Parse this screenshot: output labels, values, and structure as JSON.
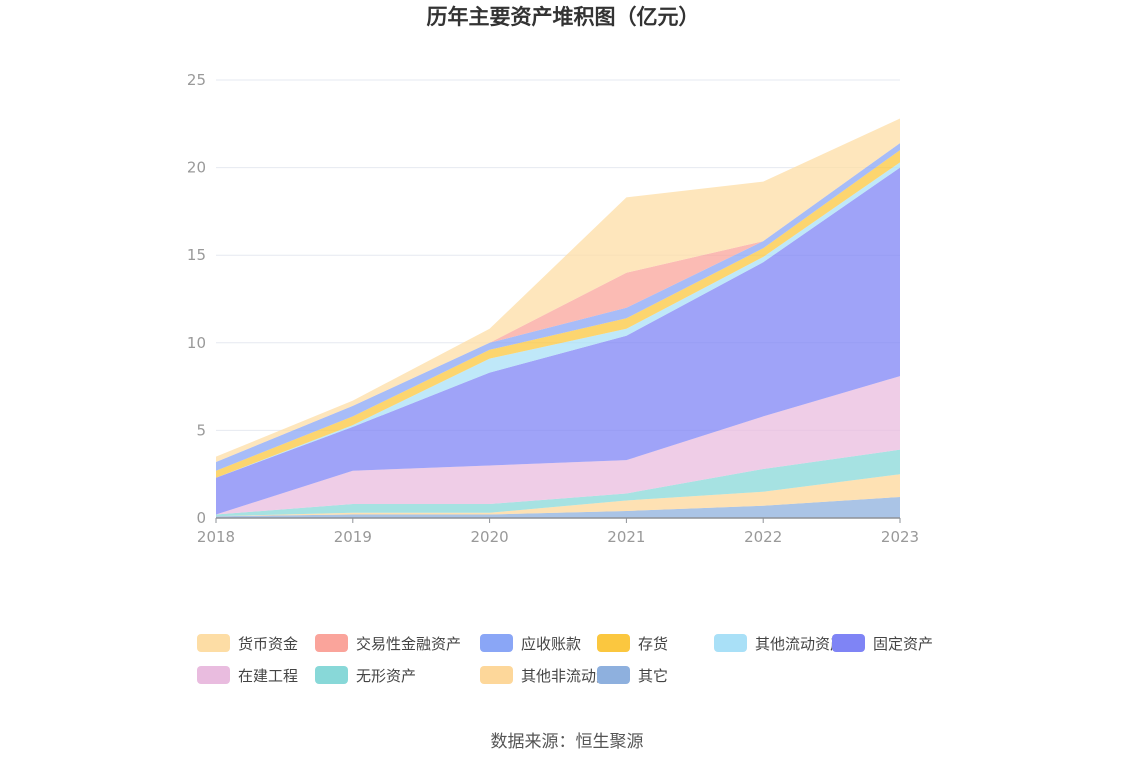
{
  "chart_data": {
    "type": "area",
    "stacked": true,
    "title": "历年主要资产堆积图（亿元）",
    "categories": [
      "2018",
      "2019",
      "2020",
      "2021",
      "2022",
      "2023"
    ],
    "yticks": [
      "0",
      "5",
      "10",
      "15",
      "20",
      "25"
    ],
    "ylim": [
      0,
      25
    ],
    "xlabel": "",
    "ylabel": "",
    "grid": true,
    "legend_position": "bottom",
    "series": [
      {
        "name": "其它",
        "color": "#8eb0de",
        "values": [
          0.1,
          0.2,
          0.2,
          0.4,
          0.7,
          1.2
        ]
      },
      {
        "name": "其他非流动资产",
        "color": "#fdd79a",
        "values": [
          0.0,
          0.1,
          0.1,
          0.6,
          0.8,
          1.3
        ]
      },
      {
        "name": "无形资产",
        "color": "#88d8d8",
        "values": [
          0.1,
          0.5,
          0.5,
          0.4,
          1.3,
          1.4
        ]
      },
      {
        "name": "在建工程",
        "color": "#e9bcdf",
        "values": [
          0.0,
          1.9,
          2.2,
          1.9,
          3.0,
          4.2
        ]
      },
      {
        "name": "固定资产",
        "color": "#7f84f5",
        "values": [
          2.1,
          2.5,
          5.3,
          7.1,
          8.8,
          11.9
        ]
      },
      {
        "name": "其他流动资产",
        "color": "#a9e0f7",
        "values": [
          0.0,
          0.1,
          0.8,
          0.4,
          0.3,
          0.3
        ]
      },
      {
        "name": "存货",
        "color": "#fbc73f",
        "values": [
          0.4,
          0.5,
          0.5,
          0.6,
          0.5,
          0.7
        ]
      },
      {
        "name": "应收账款",
        "color": "#8aa6f6",
        "values": [
          0.5,
          0.6,
          0.4,
          0.6,
          0.4,
          0.4
        ]
      },
      {
        "name": "交易性金融资产",
        "color": "#faa49b",
        "values": [
          0.0,
          0.0,
          0.0,
          2.0,
          0.0,
          0.0
        ]
      },
      {
        "name": "货币资金",
        "color": "#fddda5",
        "values": [
          0.3,
          0.3,
          0.8,
          4.3,
          3.4,
          1.4
        ]
      }
    ]
  },
  "legend": [
    {
      "label": "货币资金",
      "color": "#fddda5"
    },
    {
      "label": "交易性金融资产",
      "color": "#faa49b"
    },
    {
      "label": "应收账款",
      "color": "#8aa6f6"
    },
    {
      "label": "存货",
      "color": "#fbc73f"
    },
    {
      "label": "其他流动资产",
      "color": "#a9e0f7"
    },
    {
      "label": "固定资产",
      "color": "#7f84f5"
    },
    {
      "label": "在建工程",
      "color": "#e9bcdf"
    },
    {
      "label": "无形资产",
      "color": "#88d8d8"
    },
    {
      "label": "其他非流动资产",
      "color": "#fdd79a"
    },
    {
      "label": "其它",
      "color": "#8eb0de"
    }
  ],
  "source": "数据来源：恒生聚源"
}
